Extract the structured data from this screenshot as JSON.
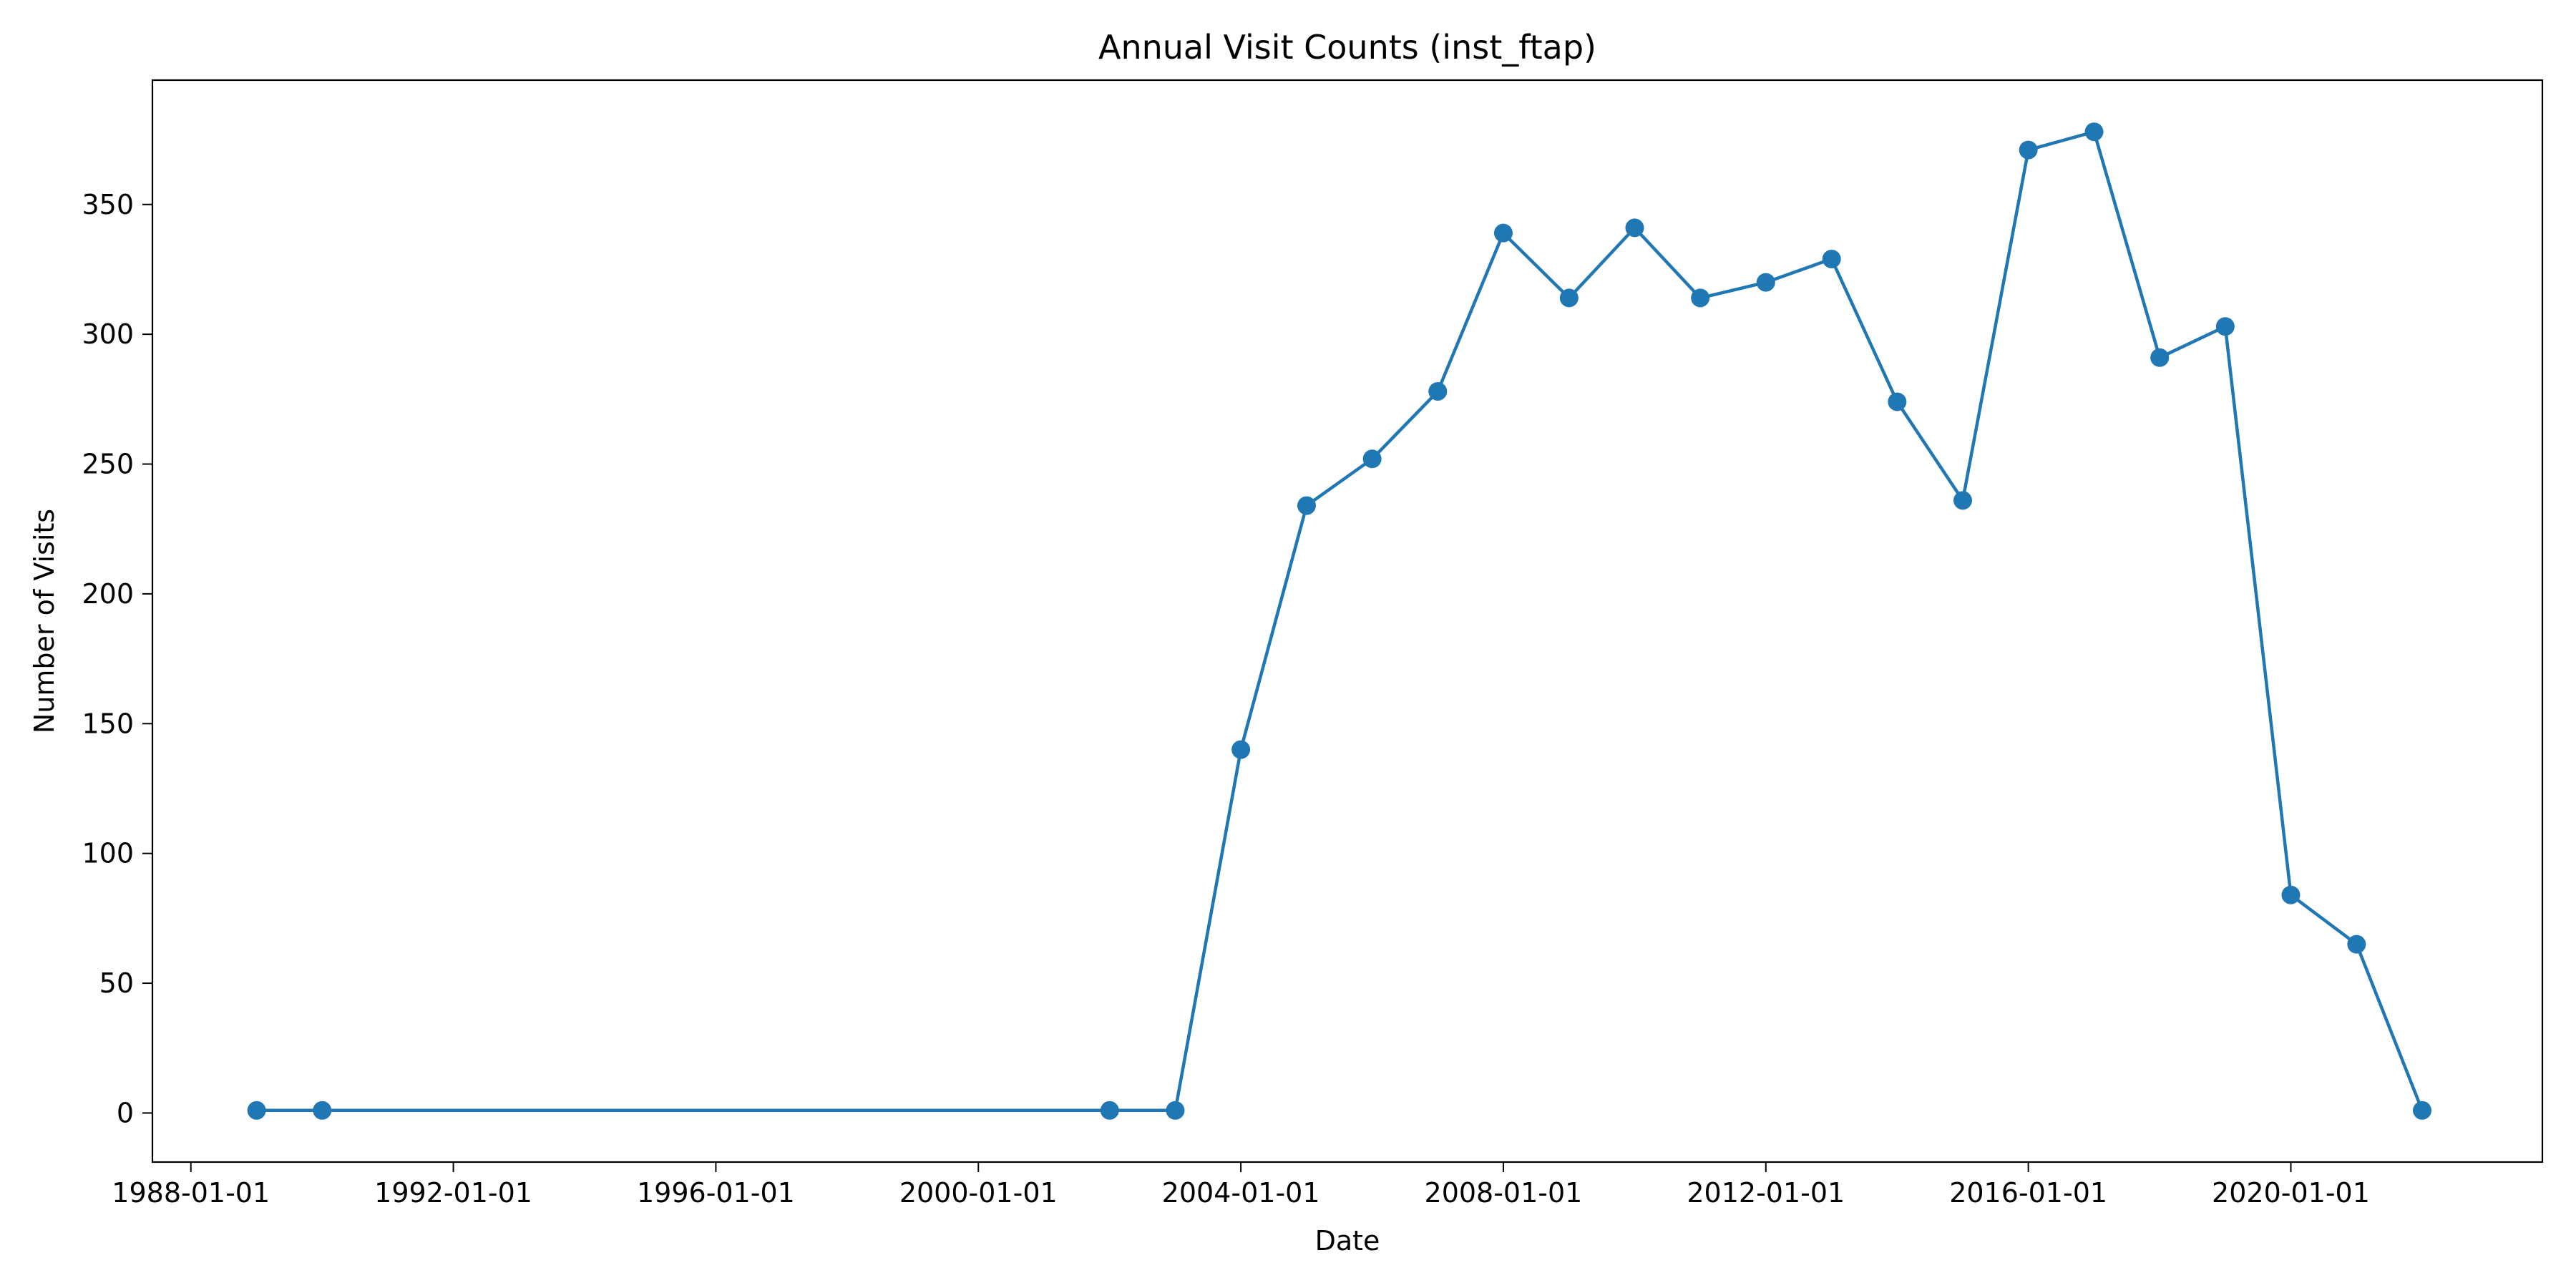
{
  "chart_data": {
    "type": "line",
    "title": "Annual Visit Counts (inst_ftap)",
    "xlabel": "Date",
    "ylabel": "Number of Visits",
    "x_scale": "date",
    "xlim": [
      "1987-06-01",
      "2023-11-01"
    ],
    "ylim": [
      -18.9,
      397.9
    ],
    "x_ticks": [
      "1988-01-01",
      "1992-01-01",
      "1996-01-01",
      "2000-01-01",
      "2004-01-01",
      "2008-01-01",
      "2012-01-01",
      "2016-01-01",
      "2020-01-01"
    ],
    "y_ticks": [
      0,
      50,
      100,
      150,
      200,
      250,
      300,
      350
    ],
    "grid": false,
    "legend": "none",
    "colors": {
      "line": "#1f77b4",
      "marker": "#1f77b4",
      "axes": "#000000",
      "background": "#ffffff"
    },
    "series": [
      {
        "x": [
          "1989-01-01",
          "1990-01-01",
          "2002-01-01",
          "2003-01-01",
          "2004-01-01",
          "2005-01-01",
          "2006-01-01",
          "2007-01-01",
          "2008-01-01",
          "2009-01-01",
          "2010-01-01",
          "2011-01-01",
          "2012-01-01",
          "2013-01-01",
          "2014-01-01",
          "2015-01-01",
          "2016-01-01",
          "2017-01-01",
          "2018-01-01",
          "2019-01-01",
          "2020-01-01",
          "2021-01-01",
          "2022-01-01"
        ],
        "values": [
          1,
          1,
          1,
          1,
          140,
          234,
          252,
          278,
          339,
          314,
          341,
          314,
          320,
          329,
          274,
          236,
          371,
          378,
          291,
          303,
          84,
          65,
          1
        ]
      }
    ]
  }
}
